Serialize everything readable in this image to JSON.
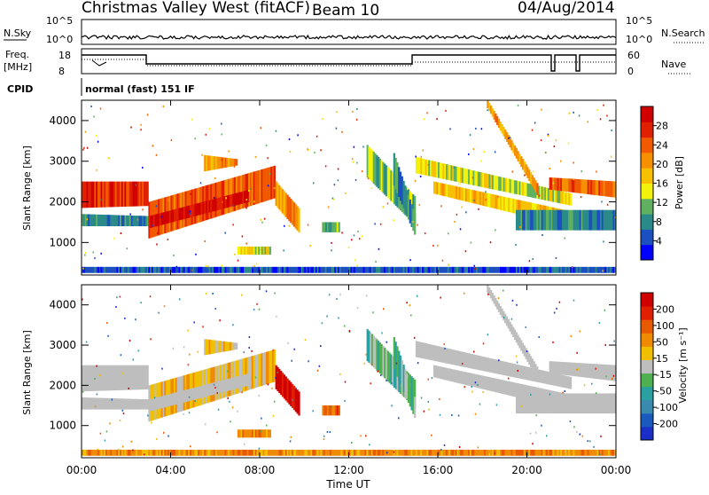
{
  "header": {
    "station": "Christmas Valley West (fitACF)",
    "beam": "Beam 10",
    "date": "04/Aug/2014"
  },
  "strip_labels": {
    "nsky": "N.Sky",
    "nsky_ticks": [
      "10^5",
      "10^0"
    ],
    "freq_top": "Freq.",
    "freq_unit": "[MHz]",
    "freq_ticks": [
      "18",
      "8"
    ],
    "cpid": "CPID",
    "cpid_text": "normal (fast) 151 IF",
    "nsearch": "N.Search",
    "nsearch_ticks": [
      "10^5",
      "10^0"
    ],
    "nave": "Nave",
    "nave_ticks": [
      "60",
      "0"
    ]
  },
  "colors": {
    "power": [
      "#0000ff",
      "#1c4fbf",
      "#2a8a8a",
      "#5fb05f",
      "#f2f20a",
      "#f7c000",
      "#f79000",
      "#f25a00",
      "#e02000",
      "#d00000"
    ],
    "velocity": [
      "#1a2fc8",
      "#1a5abf",
      "#3a8ab0",
      "#2aa0a0",
      "#4fb04f",
      "#bebebe",
      "#f0c000",
      "#f08a00",
      "#e85a00",
      "#e02000",
      "#d00000"
    ]
  },
  "chart_data": [
    {
      "type": "heatmap",
      "ylabel": "Slant Range [km]",
      "yticks": [
        "1000",
        "2000",
        "3000",
        "4000"
      ],
      "ylim": [
        200,
        4500
      ],
      "colorbar_label": "Power [dB]",
      "colorbar_ticks": [
        "4",
        "8",
        "12",
        "16",
        "20",
        "24",
        "28"
      ],
      "clim": [
        0,
        30
      ]
    },
    {
      "type": "heatmap",
      "ylabel": "Slant Range [km]",
      "yticks": [
        "1000",
        "2000",
        "3000",
        "4000"
      ],
      "ylim": [
        200,
        4500
      ],
      "xlabel": "Time UT",
      "xticks": [
        "00:00",
        "04:00",
        "08:00",
        "12:00",
        "16:00",
        "20:00",
        "00:00"
      ],
      "xlim": [
        0,
        24
      ],
      "colorbar_label": "Velocity [m s⁻¹]",
      "colorbar_ticks": [
        "200",
        "100",
        "50",
        "15",
        "-15",
        "-50",
        "-100",
        "-200"
      ],
      "clim": [
        -250,
        250
      ]
    }
  ]
}
